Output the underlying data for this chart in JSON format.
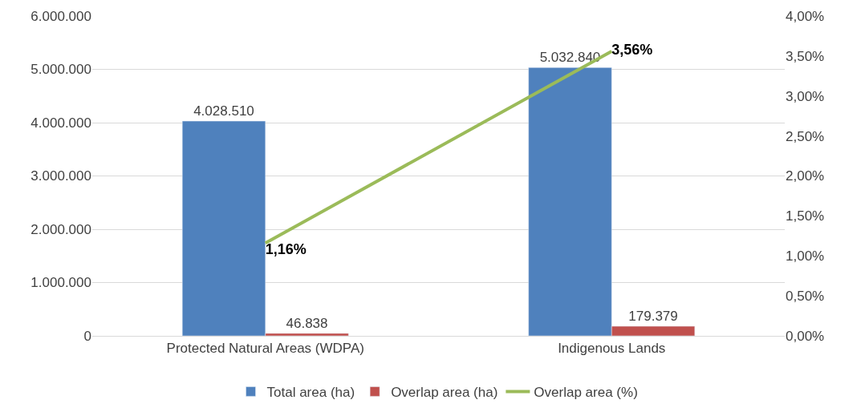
{
  "chart_data": {
    "type": "bar",
    "categories": [
      "Protected Natural Areas (WDPA)",
      "Indigenous Lands"
    ],
    "series": [
      {
        "name": "Total area (ha)",
        "color": "#4f81bd",
        "values": [
          4028510,
          5032840
        ],
        "value_labels": [
          "4.028.510",
          "5.032.840"
        ]
      },
      {
        "name": "Overlap area (ha)",
        "color": "#c0504d",
        "values": [
          46838,
          179379
        ],
        "value_labels": [
          "46.838",
          "179.379"
        ]
      },
      {
        "name": "Overlap area (%)",
        "type": "line",
        "axis": "y2",
        "color": "#9bbb59",
        "values": [
          1.16,
          3.56
        ],
        "value_labels": [
          "1,16%",
          "3,56%"
        ],
        "marker": "none",
        "line_style": "solid"
      }
    ],
    "ylim": [
      0,
      6000000
    ],
    "yticks": [
      0,
      {
        "value": 1000000,
        "label": "1.000.000"
      },
      {
        "value": 2000000,
        "label": "2.000.000"
      },
      {
        "value": 3000000,
        "label": "3.000.000"
      },
      {
        "value": 4000000,
        "label": "4.000.000"
      },
      {
        "value": 5000000,
        "label": "5.000.000"
      },
      {
        "value": 6000000,
        "label": "6.000.000"
      }
    ],
    "y2lim": [
      0,
      4
    ],
    "y2ticks": [
      {
        "value": 0,
        "label": "0,00%"
      },
      {
        "value": 0.5,
        "label": "0,50%"
      },
      {
        "value": 1,
        "label": "1,00%"
      },
      {
        "value": 1.5,
        "label": "1,50%"
      },
      {
        "value": 2,
        "label": "2,00%"
      },
      {
        "value": 2.5,
        "label": "2,50%"
      },
      {
        "value": 3,
        "label": "3,00%"
      },
      {
        "value": 3.5,
        "label": "3,50%"
      },
      {
        "value": 4,
        "label": "4,00%"
      }
    ],
    "grid": "y",
    "legend": "bottom"
  }
}
